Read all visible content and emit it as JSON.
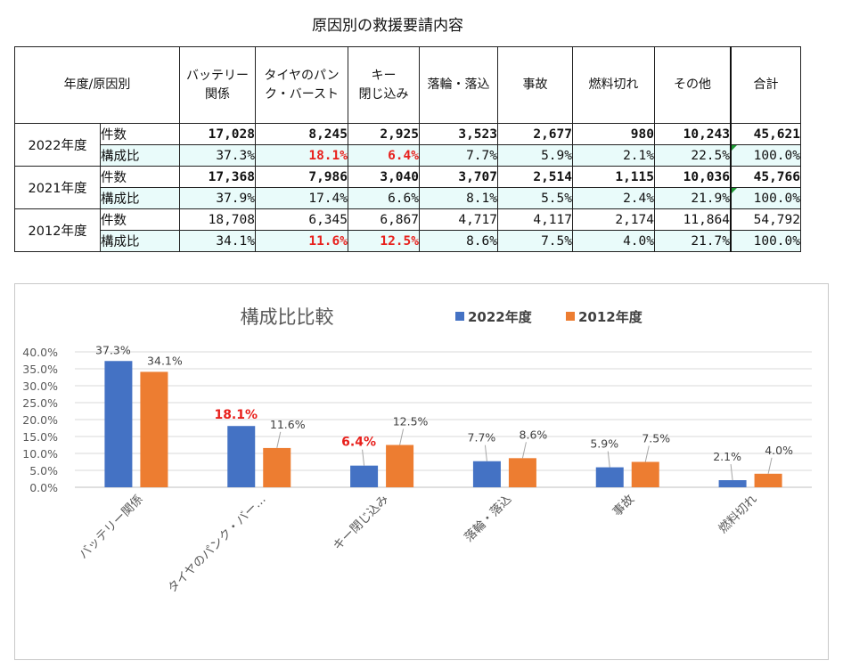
{
  "page_title": "原因別の救援要請内容",
  "table": {
    "corner_header": "年度/原因別",
    "columns": [
      {
        "line1": "バッテリー",
        "line2": "関係"
      },
      {
        "line1": "タイヤのパン",
        "line2": "ク・バースト"
      },
      {
        "line1": "キー",
        "line2": "閉じ込み"
      },
      {
        "line1": "落輪・落込",
        "line2": ""
      },
      {
        "line1": "事故",
        "line2": ""
      },
      {
        "line1": "燃料切れ",
        "line2": ""
      },
      {
        "line1": "その他",
        "line2": ""
      },
      {
        "line1": "合計",
        "line2": ""
      }
    ],
    "years": [
      {
        "year": "2022年度",
        "count_label": "件数",
        "counts": [
          "17,028",
          "8,245",
          "2,925",
          "3,523",
          "2,677",
          "980",
          "10,243",
          "45,621"
        ],
        "ratio_label": "構成比",
        "ratios": [
          "37.3%",
          "18.1%",
          "6.4%",
          "7.7%",
          "5.9%",
          "2.1%",
          "22.5%",
          "100.0%"
        ]
      },
      {
        "year": "2021年度",
        "count_label": "件数",
        "counts": [
          "17,368",
          "7,986",
          "3,040",
          "3,707",
          "2,514",
          "1,115",
          "10,036",
          "45,766"
        ],
        "ratio_label": "構成比",
        "ratios": [
          "37.9%",
          "17.4%",
          "6.6%",
          "8.1%",
          "5.5%",
          "2.4%",
          "21.9%",
          "100.0%"
        ]
      },
      {
        "year": "2012年度",
        "count_label": "件数",
        "counts": [
          "18,708",
          "6,345",
          "6,867",
          "4,717",
          "4,117",
          "2,174",
          "11,864",
          "54,792"
        ],
        "ratio_label": "構成比",
        "ratios": [
          "34.1%",
          "11.6%",
          "12.5%",
          "8.6%",
          "7.5%",
          "4.0%",
          "21.7%",
          "100.0%"
        ]
      }
    ]
  },
  "chart_data": {
    "type": "bar",
    "title": "構成比比較",
    "categories": [
      "バッテリー関係",
      "タイヤのパンク・バー…",
      "キー閉じ込み",
      "落輪・落込",
      "事故",
      "燃料切れ"
    ],
    "series": [
      {
        "name": "2022年度",
        "color": "#4472c4",
        "values": [
          37.3,
          18.1,
          6.4,
          7.7,
          5.9,
          2.1
        ],
        "labels": [
          "37.3%",
          "18.1%",
          "6.4%",
          "7.7%",
          "5.9%",
          "2.1%"
        ],
        "highlight": [
          false,
          true,
          true,
          false,
          false,
          false
        ]
      },
      {
        "name": "2012年度",
        "color": "#ed7d31",
        "values": [
          34.1,
          11.6,
          12.5,
          8.6,
          7.5,
          4.0
        ],
        "labels": [
          "34.1%",
          "11.6%",
          "12.5%",
          "8.6%",
          "7.5%",
          "4.0%"
        ],
        "highlight": [
          false,
          false,
          false,
          false,
          false,
          false
        ]
      }
    ],
    "y_ticks": [
      "0.0%",
      "5.0%",
      "10.0%",
      "15.0%",
      "20.0%",
      "25.0%",
      "30.0%",
      "35.0%",
      "40.0%"
    ],
    "ylim": [
      0,
      40
    ],
    "highlight_color": "#e8201c",
    "legend_position": "top",
    "grid": true
  }
}
